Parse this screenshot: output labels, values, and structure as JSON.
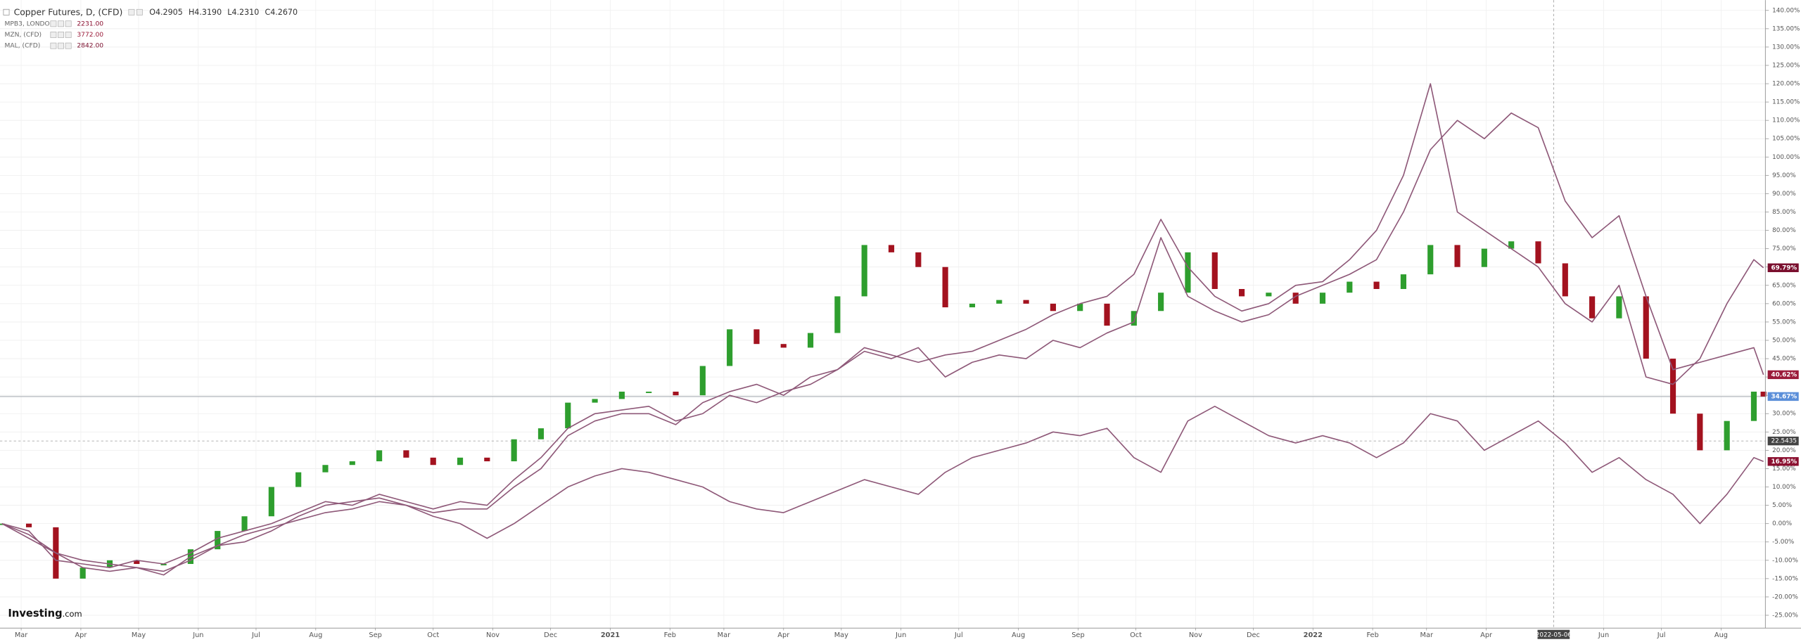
{
  "chart_data": {
    "type": "candlestick",
    "title": "Copper Futures, D, (CFD)",
    "legend_ohlc": [
      "O4.2905",
      "H4.3190",
      "L4.2310",
      "C4.2670"
    ],
    "brand": "Investing",
    "brand_suffix": ".com",
    "x": [
      "2020-02-20",
      "2020-03-05",
      "2020-03-19",
      "2020-04-02",
      "2020-04-16",
      "2020-04-30",
      "2020-05-14",
      "2020-05-28",
      "2020-06-11",
      "2020-06-25",
      "2020-07-09",
      "2020-07-23",
      "2020-08-06",
      "2020-08-20",
      "2020-09-03",
      "2020-09-17",
      "2020-10-01",
      "2020-10-15",
      "2020-10-29",
      "2020-11-12",
      "2020-11-26",
      "2020-12-10",
      "2020-12-24",
      "2021-01-07",
      "2021-01-21",
      "2021-02-04",
      "2021-02-18",
      "2021-03-04",
      "2021-03-18",
      "2021-04-01",
      "2021-04-15",
      "2021-04-29",
      "2021-05-13",
      "2021-05-27",
      "2021-06-10",
      "2021-06-24",
      "2021-07-08",
      "2021-07-22",
      "2021-08-05",
      "2021-08-19",
      "2021-09-02",
      "2021-09-16",
      "2021-09-30",
      "2021-10-14",
      "2021-10-28",
      "2021-11-11",
      "2021-11-25",
      "2021-12-09",
      "2021-12-23",
      "2022-01-06",
      "2022-01-20",
      "2022-02-03",
      "2022-02-17",
      "2022-03-03",
      "2022-03-17",
      "2022-03-31",
      "2022-04-14",
      "2022-04-28",
      "2022-05-12",
      "2022-05-26",
      "2022-06-09",
      "2022-06-23",
      "2022-07-07",
      "2022-07-21",
      "2022-08-04",
      "2022-08-18",
      "2022-08-23"
    ],
    "xlim": [
      "2020-02-19",
      "2022-08-24"
    ],
    "xticks": [
      {
        "value": "2020-03-01",
        "label": "Mar"
      },
      {
        "value": "2020-04-01",
        "label": "Apr"
      },
      {
        "value": "2020-05-01",
        "label": "May"
      },
      {
        "value": "2020-06-01",
        "label": "Jun"
      },
      {
        "value": "2020-07-01",
        "label": "Jul"
      },
      {
        "value": "2020-08-01",
        "label": "Aug"
      },
      {
        "value": "2020-09-01",
        "label": "Sep"
      },
      {
        "value": "2020-10-01",
        "label": "Oct"
      },
      {
        "value": "2020-11-01",
        "label": "Nov"
      },
      {
        "value": "2020-12-01",
        "label": "Dec"
      },
      {
        "value": "2021-01-01",
        "label": "2021"
      },
      {
        "value": "2021-02-01",
        "label": "Feb"
      },
      {
        "value": "2021-03-01",
        "label": "Mar"
      },
      {
        "value": "2021-04-01",
        "label": "Apr"
      },
      {
        "value": "2021-05-01",
        "label": "May"
      },
      {
        "value": "2021-06-01",
        "label": "Jun"
      },
      {
        "value": "2021-07-01",
        "label": "Jul"
      },
      {
        "value": "2021-08-01",
        "label": "Aug"
      },
      {
        "value": "2021-09-01",
        "label": "Sep"
      },
      {
        "value": "2021-10-01",
        "label": "Oct"
      },
      {
        "value": "2021-11-01",
        "label": "Nov"
      },
      {
        "value": "2021-12-01",
        "label": "Dec"
      },
      {
        "value": "2022-01-01",
        "label": "2022"
      },
      {
        "value": "2022-02-01",
        "label": "Feb"
      },
      {
        "value": "2022-03-01",
        "label": "Mar"
      },
      {
        "value": "2022-04-01",
        "label": "Apr"
      },
      {
        "value": "2022-06-01",
        "label": "Jun"
      },
      {
        "value": "2022-07-01",
        "label": "Jul"
      },
      {
        "value": "2022-08-01",
        "label": "Aug"
      }
    ],
    "ylim": [
      -28.5,
      142.8
    ],
    "yticks": [
      {
        "value": 140,
        "label": "140.00%"
      },
      {
        "value": 135,
        "label": "135.00%"
      },
      {
        "value": 130,
        "label": "130.00%"
      },
      {
        "value": 125,
        "label": "125.00%"
      },
      {
        "value": 120,
        "label": "120.00%"
      },
      {
        "value": 115,
        "label": "115.00%"
      },
      {
        "value": 110,
        "label": "110.00%"
      },
      {
        "value": 105,
        "label": "105.00%"
      },
      {
        "value": 100,
        "label": "100.00%"
      },
      {
        "value": 95,
        "label": "95.00%"
      },
      {
        "value": 90,
        "label": "90.00%"
      },
      {
        "value": 85,
        "label": "85.00%"
      },
      {
        "value": 80,
        "label": "80.00%"
      },
      {
        "value": 75,
        "label": "75.00%"
      },
      {
        "value": 70,
        "label": "70.00%"
      },
      {
        "value": 65,
        "label": "65.00%"
      },
      {
        "value": 60,
        "label": "60.00%"
      },
      {
        "value": 55,
        "label": "55.00%"
      },
      {
        "value": 50,
        "label": "50.00%"
      },
      {
        "value": 45,
        "label": "45.00%"
      },
      {
        "value": 40,
        "label": "40.00%"
      },
      {
        "value": 35,
        "label": "35.00%"
      },
      {
        "value": 30,
        "label": "30.00%"
      },
      {
        "value": 25,
        "label": "25.00%"
      },
      {
        "value": 20,
        "label": "20.00%"
      },
      {
        "value": 15,
        "label": "15.00%"
      },
      {
        "value": 10,
        "label": "10.00%"
      },
      {
        "value": 5,
        "label": "5.00%"
      },
      {
        "value": 0,
        "label": "0.00%"
      },
      {
        "value": -5,
        "label": "-5.00%"
      },
      {
        "value": -10,
        "label": "-10.00%"
      },
      {
        "value": -15,
        "label": "-15.00%"
      },
      {
        "value": -20,
        "label": "-20.00%"
      },
      {
        "value": -25,
        "label": "-25.00%"
      }
    ],
    "grid": true,
    "crosshair": {
      "x": "2022-05-06",
      "y": 22.5435
    },
    "series": [
      {
        "name": "Copper Futures, D, (CFD)",
        "type": "candlestick",
        "up_color": "#2e9e2e",
        "down_color": "#a3121f",
        "label_color": "#5b8fd9",
        "last_label": "34.67%",
        "values": [
          0,
          -1,
          -15,
          -12,
          -10,
          -11,
          -11,
          -7,
          -2,
          2,
          10,
          14,
          16,
          17,
          20,
          18,
          16,
          18,
          17,
          23,
          26,
          33,
          34,
          36,
          36,
          35,
          43,
          53,
          49,
          48,
          52,
          62,
          76,
          74,
          70,
          59,
          60,
          61,
          60,
          58,
          60,
          54,
          58,
          63,
          74,
          64,
          62,
          63,
          60,
          63,
          66,
          64,
          68,
          76,
          70,
          75,
          77,
          71,
          62,
          56,
          62,
          45,
          30,
          20,
          28,
          36,
          34.67
        ]
      },
      {
        "name": "MPB3, LONDON",
        "type": "line",
        "color": "#8e5878",
        "label_color": "#8b1030",
        "legend_value": "2231.00",
        "last_label": "16.95%",
        "values": [
          0,
          -4,
          -8,
          -10,
          -11,
          -12,
          -13,
          -10,
          -6,
          -3,
          -1,
          1,
          3,
          4,
          6,
          5,
          2,
          0,
          -4,
          0,
          5,
          10,
          13,
          15,
          14,
          12,
          10,
          6,
          4,
          3,
          6,
          9,
          12,
          10,
          8,
          14,
          18,
          20,
          22,
          25,
          24,
          26,
          18,
          14,
          28,
          32,
          28,
          24,
          22,
          24,
          22,
          18,
          22,
          30,
          28,
          20,
          24,
          28,
          22,
          14,
          18,
          12,
          8,
          0,
          8,
          18,
          16.95
        ]
      },
      {
        "name": "MZN, (CFD)",
        "type": "line",
        "color": "#8e5878",
        "label_color": "#9b1b3a",
        "legend_value": "3772.00",
        "last_label": "40.62%",
        "values": [
          0,
          -2,
          -10,
          -11,
          -12,
          -10,
          -11,
          -8,
          -4,
          -2,
          0,
          3,
          6,
          5,
          8,
          6,
          4,
          6,
          5,
          12,
          18,
          26,
          30,
          31,
          32,
          28,
          30,
          35,
          33,
          36,
          38,
          42,
          47,
          45,
          48,
          40,
          44,
          46,
          45,
          50,
          48,
          52,
          55,
          78,
          62,
          58,
          55,
          57,
          62,
          65,
          68,
          72,
          85,
          102,
          110,
          105,
          112,
          108,
          88,
          78,
          84,
          62,
          42,
          44,
          46,
          48,
          40.62
        ]
      },
      {
        "name": "MAL, (CFD)",
        "type": "line",
        "color": "#8e5878",
        "label_color": "#7a0f2e",
        "legend_value": "2842.00",
        "last_label": "69.79%",
        "values": [
          0,
          -3,
          -8,
          -12,
          -13,
          -12,
          -14,
          -9,
          -6,
          -5,
          -2,
          2,
          5,
          6,
          7,
          5,
          3,
          4,
          4,
          10,
          15,
          24,
          28,
          30,
          30,
          27,
          33,
          36,
          38,
          35,
          40,
          42,
          48,
          46,
          44,
          46,
          47,
          50,
          53,
          57,
          60,
          62,
          68,
          83,
          70,
          62,
          58,
          60,
          65,
          66,
          72,
          80,
          95,
          120,
          85,
          80,
          75,
          70,
          60,
          55,
          65,
          40,
          38,
          45,
          60,
          72,
          69.79
        ]
      }
    ]
  }
}
